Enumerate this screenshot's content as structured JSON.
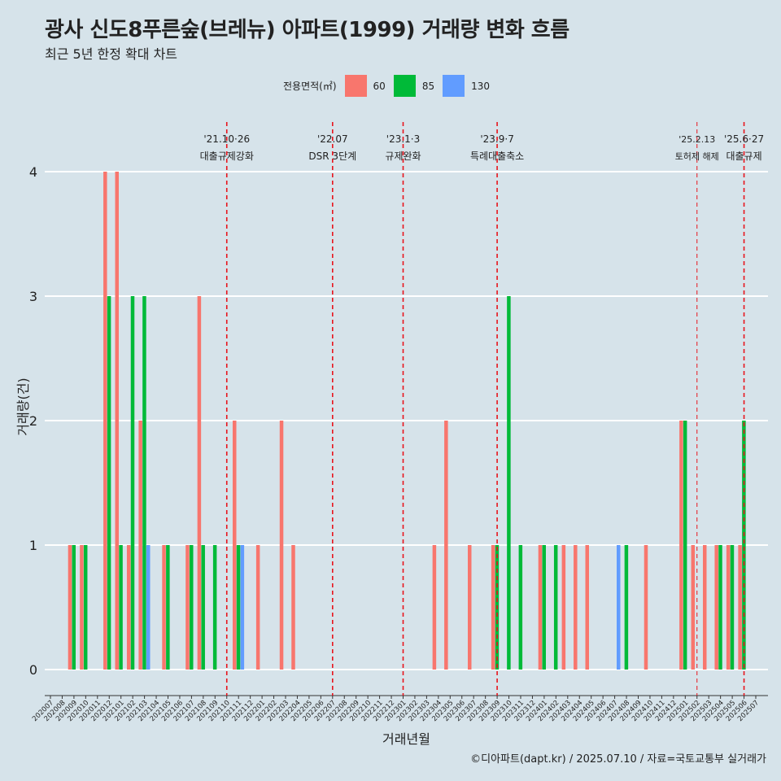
{
  "title": "광사 신도8푸른숲(브레뉴) 아파트(1999) 거래량 변화 흐름",
  "subtitle": "최근 5년 한정 확대 차트",
  "caption": "©디아파트(dapt.kr) / 2025.07.10 / 자료=국토교통부 실거래가",
  "legend": {
    "title": "전용면적(㎡)",
    "items": [
      {
        "label": "60",
        "color": "#f8766d"
      },
      {
        "label": "85",
        "color": "#00ba38"
      },
      {
        "label": "130",
        "color": "#619cff"
      }
    ]
  },
  "chart_data": {
    "type": "bar",
    "xlabel": "거래년월",
    "ylabel": "거래량(건)",
    "ylim": [
      0,
      4
    ],
    "yticks": [
      0,
      1,
      2,
      3,
      4
    ],
    "grid": true,
    "legend_position": "top",
    "categories": [
      "202007",
      "202008",
      "202009",
      "202010",
      "202011",
      "202012",
      "202101",
      "202102",
      "202103",
      "202104",
      "202105",
      "202106",
      "202107",
      "202108",
      "202109",
      "202110",
      "202111",
      "202112",
      "202201",
      "202202",
      "202203",
      "202204",
      "202205",
      "202206",
      "202207",
      "202208",
      "202209",
      "202210",
      "202211",
      "202212",
      "202301",
      "202302",
      "202303",
      "202304",
      "202305",
      "202306",
      "202307",
      "202308",
      "202309",
      "202310",
      "202311",
      "202312",
      "202401",
      "202402",
      "202403",
      "202404",
      "202405",
      "202406",
      "202407",
      "202408",
      "202409",
      "202410",
      "202411",
      "202412",
      "202501",
      "202502",
      "202503",
      "202504",
      "202505",
      "202506",
      "202507"
    ],
    "series": [
      {
        "name": "60",
        "color": "#f8766d",
        "values": [
          0,
          0,
          1,
          1,
          0,
          4,
          4,
          1,
          2,
          0,
          1,
          0,
          1,
          3,
          0,
          0,
          2,
          0,
          1,
          0,
          2,
          1,
          0,
          0,
          0,
          0,
          0,
          0,
          0,
          0,
          0,
          0,
          0,
          1,
          2,
          0,
          1,
          0,
          1,
          0,
          0,
          0,
          1,
          0,
          1,
          1,
          1,
          0,
          0,
          0,
          0,
          1,
          0,
          0,
          2,
          1,
          1,
          1,
          1,
          1,
          0
        ]
      },
      {
        "name": "85",
        "color": "#00ba38",
        "values": [
          0,
          0,
          1,
          1,
          0,
          3,
          1,
          3,
          3,
          0,
          1,
          0,
          1,
          1,
          1,
          0,
          1,
          0,
          0,
          0,
          0,
          0,
          0,
          0,
          0,
          0,
          0,
          0,
          0,
          0,
          0,
          0,
          0,
          0,
          0,
          0,
          0,
          0,
          1,
          3,
          1,
          0,
          1,
          1,
          0,
          0,
          0,
          0,
          0,
          1,
          0,
          0,
          0,
          0,
          2,
          0,
          0,
          1,
          1,
          2,
          0
        ]
      },
      {
        "name": "130",
        "color": "#619cff",
        "values": [
          0,
          0,
          0,
          0,
          0,
          0,
          0,
          0,
          1,
          0,
          0,
          0,
          0,
          0,
          0,
          0,
          1,
          0,
          0,
          0,
          0,
          0,
          0,
          0,
          0,
          0,
          0,
          0,
          0,
          0,
          0,
          0,
          0,
          0,
          0,
          0,
          0,
          0,
          0,
          0,
          0,
          0,
          0,
          0,
          0,
          0,
          0,
          0,
          1,
          0,
          0,
          0,
          0,
          0,
          0,
          0,
          0,
          0,
          0,
          0,
          0
        ]
      }
    ],
    "annotations": [
      {
        "month": "202110",
        "line1": "'21.10·26",
        "line2": "대출규제강화",
        "style": "dashed"
      },
      {
        "month": "202207",
        "line1": "'22.07",
        "line2": "DSR 3단계",
        "style": "dashed"
      },
      {
        "month": "202301",
        "line1": "'23.1·3",
        "line2": "규제완화",
        "style": "dashed"
      },
      {
        "month": "202309",
        "line1": "'23.9·7",
        "line2": "특례대출축소",
        "style": "dashed"
      },
      {
        "month": "202502",
        "line1": "'25.2.13",
        "line2": "토허제 해제",
        "style": "thin"
      },
      {
        "month": "202506",
        "line1": "'25.6·27",
        "line2": "대출규제",
        "style": "dashed"
      }
    ]
  }
}
